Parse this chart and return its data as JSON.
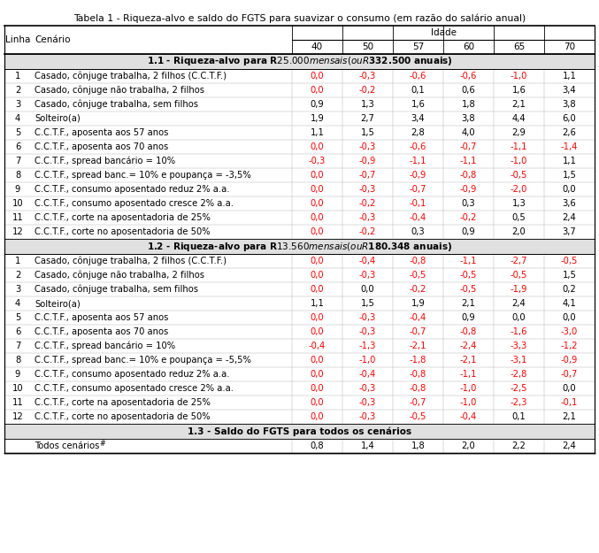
{
  "title": "Tabela 1 - Riqueza-alvo e saldo do FGTS para suavizar o consumo (em razão do salário anual)",
  "age_header": "Idade",
  "section1_header": "1.1 - Riqueza-alvo para R$ 25.000 mensais (ou R$332.500 anuais)",
  "section2_header": "1.2 - Riqueza-alvo para R$13.560 mensais (ou R$180.348 anuais)",
  "section3_header": "1.3 - Saldo do FGTS para todos os cenários",
  "section1_rows": [
    [
      "1",
      "Casado, cônjuge trabalha, 2 filhos (C.C.T.F.)",
      "0,0",
      "-0,3",
      "-0,6",
      "-0,6",
      "-1,0",
      "1,1"
    ],
    [
      "2",
      "Casado, cônjuge não trabalha, 2 filhos",
      "0,0",
      "-0,2",
      "0,1",
      "0,6",
      "1,6",
      "3,4"
    ],
    [
      "3",
      "Casado, cônjuge trabalha, sem filhos",
      "0,9",
      "1,3",
      "1,6",
      "1,8",
      "2,1",
      "3,8"
    ],
    [
      "4",
      "Solteiro(a)",
      "1,9",
      "2,7",
      "3,4",
      "3,8",
      "4,4",
      "6,0"
    ],
    [
      "5",
      "C.C.T.F., aposenta aos 57 anos",
      "1,1",
      "1,5",
      "2,8",
      "4,0",
      "2,9",
      "2,6"
    ],
    [
      "6",
      "C.C.T.F., aposenta aos 70 anos",
      "0,0",
      "-0,3",
      "-0,6",
      "-0,7",
      "-1,1",
      "-1,4"
    ],
    [
      "7",
      "C.C.T.F., spread bancário = 10%",
      "-0,3",
      "-0,9",
      "-1,1",
      "-1,1",
      "-1,0",
      "1,1"
    ],
    [
      "8",
      "C.C.T.F., spread banc.= 10% e poupança = -3,5%",
      "0,0",
      "-0,7",
      "-0,9",
      "-0,8",
      "-0,5",
      "1,5"
    ],
    [
      "9",
      "C.C.T.F., consumo aposentado reduz 2% a.a.",
      "0,0",
      "-0,3",
      "-0,7",
      "-0,9",
      "-2,0",
      "0,0"
    ],
    [
      "10",
      "C.C.T.F., consumo aposentado cresce 2% a.a.",
      "0,0",
      "-0,2",
      "-0,1",
      "0,3",
      "1,3",
      "3,6"
    ],
    [
      "11",
      "C.C.T.F., corte na aposentadoria de 25%",
      "0,0",
      "-0,3",
      "-0,4",
      "-0,2",
      "0,5",
      "2,4"
    ],
    [
      "12",
      "C.C.T.F., corte no aposentadoria de 50%",
      "0,0",
      "-0,2",
      "0,3",
      "0,9",
      "2,0",
      "3,7"
    ]
  ],
  "section1_red": [
    [
      true,
      true,
      true,
      true,
      true,
      false
    ],
    [
      true,
      true,
      false,
      false,
      false,
      false
    ],
    [
      false,
      false,
      false,
      false,
      false,
      false
    ],
    [
      false,
      false,
      false,
      false,
      false,
      false
    ],
    [
      false,
      false,
      false,
      false,
      false,
      false
    ],
    [
      true,
      true,
      true,
      true,
      true,
      true
    ],
    [
      true,
      true,
      true,
      true,
      true,
      false
    ],
    [
      true,
      true,
      true,
      true,
      true,
      false
    ],
    [
      true,
      true,
      true,
      true,
      true,
      false
    ],
    [
      true,
      true,
      true,
      false,
      false,
      false
    ],
    [
      true,
      true,
      true,
      true,
      false,
      false
    ],
    [
      true,
      true,
      false,
      false,
      false,
      false
    ]
  ],
  "section2_rows": [
    [
      "1",
      "Casado, cônjuge trabalha, 2 filhos (C.C.T.F.)",
      "0,0",
      "-0,4",
      "-0,8",
      "-1,1",
      "-2,7",
      "-0,5"
    ],
    [
      "2",
      "Casado, cônjuge não trabalha, 2 filhos",
      "0,0",
      "-0,3",
      "-0,5",
      "-0,5",
      "-0,5",
      "1,5"
    ],
    [
      "3",
      "Casado, cônjuge trabalha, sem filhos",
      "0,0",
      "0,0",
      "-0,2",
      "-0,5",
      "-1,9",
      "0,2"
    ],
    [
      "4",
      "Solteiro(a)",
      "1,1",
      "1,5",
      "1,9",
      "2,1",
      "2,4",
      "4,1"
    ],
    [
      "5",
      "C.C.T.F., aposenta aos 57 anos",
      "0,0",
      "-0,3",
      "-0,4",
      "0,9",
      "0,0",
      "0,0"
    ],
    [
      "6",
      "C.C.T.F., aposenta aos 70 anos",
      "0,0",
      "-0,3",
      "-0,7",
      "-0,8",
      "-1,6",
      "-3,0"
    ],
    [
      "7",
      "C.C.T.F., spread bancário = 10%",
      "-0,4",
      "-1,3",
      "-2,1",
      "-2,4",
      "-3,3",
      "-1,2"
    ],
    [
      "8",
      "C.C.T.F., spread banc.= 10% e poupança = -5,5%",
      "0,0",
      "-1,0",
      "-1,8",
      "-2,1",
      "-3,1",
      "-0,9"
    ],
    [
      "9",
      "C.C.T.F., consumo aposentado reduz 2% a.a.",
      "0,0",
      "-0,4",
      "-0,8",
      "-1,1",
      "-2,8",
      "-0,7"
    ],
    [
      "10",
      "C.C.T.F., consumo aposentado cresce 2% a.a.",
      "0,0",
      "-0,3",
      "-0,8",
      "-1,0",
      "-2,5",
      "0,0"
    ],
    [
      "11",
      "C.C.T.F., corte na aposentadoria de 25%",
      "0,0",
      "-0,3",
      "-0,7",
      "-1,0",
      "-2,3",
      "-0,1"
    ],
    [
      "12",
      "C.C.T.F., corte no aposentadoria de 50%",
      "0,0",
      "-0,3",
      "-0,5",
      "-0,4",
      "0,1",
      "2,1"
    ]
  ],
  "section2_red": [
    [
      true,
      true,
      true,
      true,
      true,
      true
    ],
    [
      true,
      true,
      true,
      true,
      true,
      false
    ],
    [
      true,
      false,
      true,
      true,
      true,
      false
    ],
    [
      false,
      false,
      false,
      false,
      false,
      false
    ],
    [
      true,
      true,
      true,
      false,
      false,
      false
    ],
    [
      true,
      true,
      true,
      true,
      true,
      true
    ],
    [
      true,
      true,
      true,
      true,
      true,
      true
    ],
    [
      true,
      true,
      true,
      true,
      true,
      true
    ],
    [
      true,
      true,
      true,
      true,
      true,
      true
    ],
    [
      true,
      true,
      true,
      true,
      true,
      false
    ],
    [
      true,
      true,
      true,
      true,
      true,
      true
    ],
    [
      true,
      true,
      true,
      true,
      false,
      false
    ]
  ],
  "section3_rows": [
    [
      "",
      "Todos cenários \u00023",
      "0,8",
      "1,4",
      "1,8",
      "2,0",
      "2,2",
      "2,4"
    ]
  ],
  "section3_red": [
    [
      false,
      false,
      false,
      false,
      false,
      false
    ]
  ],
  "red_color": "#FF0000",
  "black_color": "#000000",
  "section_bg": "#E0E0E0",
  "font_size": 7.2,
  "header_font_size": 7.5,
  "section_font_size": 7.5,
  "title_font_size": 7.8
}
